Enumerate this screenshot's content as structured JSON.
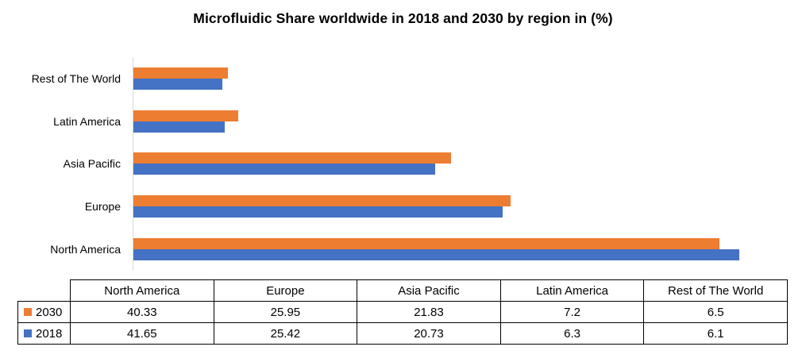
{
  "chart_data": {
    "type": "bar",
    "orientation": "horizontal",
    "title": "Microfluidic Share worldwide in 2018 and 2030 by region in (%)",
    "categories": [
      "North America",
      "Europe",
      "Asia Pacific",
      "Latin America",
      "Rest of The World"
    ],
    "display_order_top_to_bottom": [
      "Rest of The World",
      "Latin America",
      "Asia Pacific",
      "Europe",
      "North America"
    ],
    "series": [
      {
        "name": "2030",
        "color": "#ED7D31",
        "values": [
          40.33,
          25.95,
          21.83,
          7.2,
          6.5
        ]
      },
      {
        "name": "2018",
        "color": "#4472C4",
        "values": [
          41.65,
          25.42,
          20.73,
          6.3,
          6.1
        ]
      }
    ],
    "xlabel": "",
    "ylabel": "",
    "xlim": [
      0,
      45
    ],
    "grid": false,
    "value_axis_labels_visible": false,
    "legend_position": "table-row-labels",
    "data_table_shown": true
  },
  "colors": {
    "series_2030": "#ED7D31",
    "series_2018": "#4472C4",
    "axis_line": "#d9d9d9",
    "table_border": "#000000",
    "text": "#000000",
    "background": "#ffffff"
  }
}
